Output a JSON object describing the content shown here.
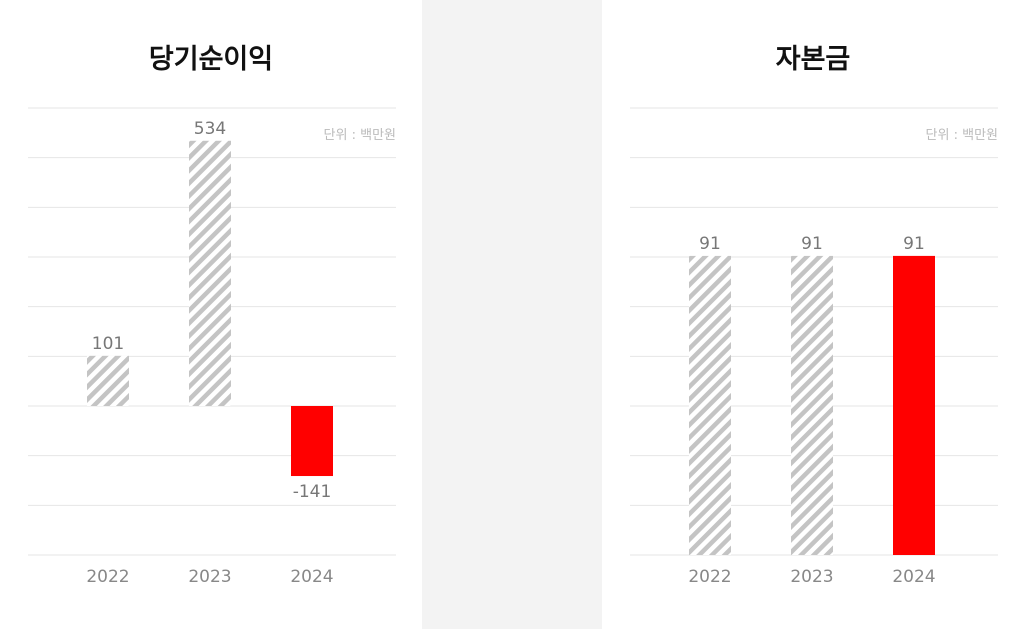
{
  "chart_data": [
    {
      "type": "bar",
      "title": "당기순이익",
      "unit": "단위 : 백만원",
      "categories": [
        "2022",
        "2023",
        "2024"
      ],
      "values": [
        101,
        534,
        -141
      ],
      "value_labels": [
        "101",
        "534",
        "-141"
      ],
      "ylim": [
        -300,
        600
      ],
      "grid": true,
      "colors": {
        "hatch": "#c4c4c4",
        "highlight": "#ff0000"
      }
    },
    {
      "type": "bar",
      "title": "자본금",
      "unit": "단위 : 백만원",
      "categories": [
        "2022",
        "2023",
        "2024"
      ],
      "values": [
        91,
        91,
        91
      ],
      "value_labels": [
        "91",
        "91",
        "91"
      ],
      "ylim": [
        0,
        136
      ],
      "grid": true,
      "colors": {
        "hatch": "#c4c4c4",
        "highlight": "#ff0000"
      }
    }
  ]
}
